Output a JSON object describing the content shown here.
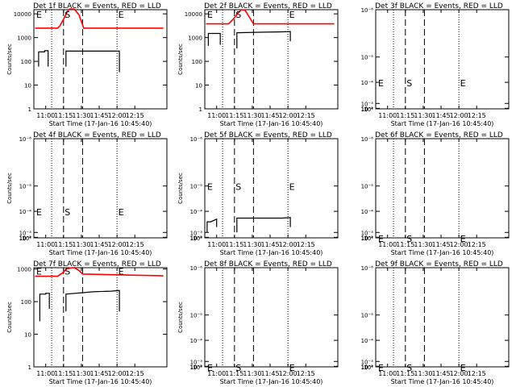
{
  "page": {
    "background": "#ffffff",
    "axis_color": "#000000",
    "events_color": "#000000",
    "lld_color": "#ff0000"
  },
  "chart_data": [
    {
      "type": "line",
      "panel": "det-1f",
      "title": "Det 1f BLACK = Events, RED = LLD",
      "xlabel": "Start Time (17-Jan-16 10:45:40)",
      "ylabel": "Counts/sec",
      "y_scale": "log",
      "ylim": [
        1,
        15000
      ],
      "xlim_minutes": [
        -10,
        102
      ],
      "x_tick_labels": [
        "11:00",
        "11:15",
        "11:30",
        "11:45",
        "12:00",
        "12:15"
      ],
      "x_tick_minutes": [
        0,
        15,
        30,
        45,
        60,
        75
      ],
      "y_tick_labels": [
        "1",
        "10",
        "100",
        "1000",
        "10000"
      ],
      "y_tick_values": [
        1,
        10,
        100,
        1000,
        10000
      ],
      "dotted_lines_minutes": [
        5,
        60
      ],
      "dashed_lines_minutes": [
        15,
        31
      ],
      "markers": [
        {
          "text": "E",
          "x": -8
        },
        {
          "text": "S",
          "x": 16
        },
        {
          "text": "E",
          "x": 61
        }
      ],
      "marker_y": 10000,
      "series": [
        {
          "name": "Events",
          "segments": [
            [
              [
                -6,
                60
              ],
              [
                -6,
                250
              ],
              [
                -1,
                250
              ],
              [
                -1,
                280
              ],
              [
                2,
                280
              ],
              [
                2,
                60
              ]
            ],
            [
              [
                17,
                60
              ],
              [
                17,
                270
              ],
              [
                40,
                270
              ],
              [
                55,
                270
              ],
              [
                62,
                270
              ],
              [
                62,
                35
              ]
            ]
          ]
        },
        {
          "name": "LLD",
          "segments": [
            [
              [
                -9,
                2500
              ],
              [
                10,
                2500
              ],
              [
                12,
                3200
              ],
              [
                15,
                6000
              ],
              [
                18,
                12000
              ],
              [
                20,
                16000
              ],
              [
                24,
                16000
              ],
              [
                28,
                9000
              ],
              [
                32,
                2500
              ],
              [
                99,
                2500
              ]
            ]
          ]
        }
      ]
    },
    {
      "type": "line",
      "panel": "det-2f",
      "title": "Det 2f BLACK = Events, RED = LLD",
      "xlabel": "Start Time (17-Jan-16 10:45:40)",
      "ylabel": "Counts/sec",
      "y_scale": "log",
      "ylim": [
        1,
        15000
      ],
      "xlim_minutes": [
        -10,
        102
      ],
      "x_tick_labels": [
        "11:00",
        "11:15",
        "11:30",
        "11:45",
        "12:00",
        "12:15"
      ],
      "x_tick_minutes": [
        0,
        15,
        30,
        45,
        60,
        75
      ],
      "y_tick_labels": [
        "1",
        "10",
        "100",
        "1000",
        "10000"
      ],
      "y_tick_values": [
        1,
        10,
        100,
        1000,
        10000
      ],
      "dotted_lines_minutes": [
        5,
        60
      ],
      "dashed_lines_minutes": [
        15,
        31
      ],
      "markers": [
        {
          "text": "E",
          "x": -8
        },
        {
          "text": "S",
          "x": 16
        },
        {
          "text": "E",
          "x": 61
        }
      ],
      "marker_y": 10000,
      "series": [
        {
          "name": "Events",
          "segments": [
            [
              [
                -7,
                450
              ],
              [
                -7,
                1500
              ],
              [
                3,
                1500
              ],
              [
                3,
                500
              ]
            ],
            [
              [
                17,
                350
              ],
              [
                17,
                1600
              ],
              [
                40,
                1700
              ],
              [
                55,
                1750
              ],
              [
                62,
                1800
              ],
              [
                62,
                700
              ]
            ]
          ]
        },
        {
          "name": "LLD",
          "segments": [
            [
              [
                -9,
                3800
              ],
              [
                10,
                3800
              ],
              [
                14,
                6000
              ],
              [
                18,
                11000
              ],
              [
                21,
                15000
              ],
              [
                24,
                14000
              ],
              [
                27,
                8000
              ],
              [
                31,
                3800
              ],
              [
                99,
                3800
              ]
            ]
          ]
        }
      ]
    },
    {
      "type": "line",
      "panel": "det-3f",
      "title": "Det 3f BLACK = Events, RED = LLD",
      "xlabel": "Start Time (17-Jan-16 10:45:40)",
      "ylabel": "",
      "y_scale": "log",
      "ylim": [
        1,
        1.2
      ],
      "xlim_minutes": [
        -10,
        102
      ],
      "x_tick_labels": [
        "11:00",
        "11:15",
        "11:30",
        "11:45",
        "12:00",
        "12:15"
      ],
      "x_tick_minutes": [
        0,
        15,
        30,
        45,
        60,
        75
      ],
      "y_tick_labels": [
        "10⁰",
        "10⁻¹",
        "10⁻²",
        "10⁻³",
        "10⁻⁴",
        "10⁻⁵",
        "10⁻⁶"
      ],
      "y_tick_values": [
        1,
        1.0001,
        1.001,
        1.01,
        1.05,
        1.1,
        1.2
      ],
      "dotted_lines_minutes": [
        5,
        60
      ],
      "dashed_lines_minutes": [
        15,
        31
      ],
      "markers": [
        {
          "text": "E",
          "x": -8
        },
        {
          "text": "S",
          "x": 16
        },
        {
          "text": "E",
          "x": 61
        }
      ],
      "marker_y": 1.05,
      "series": []
    },
    {
      "type": "line",
      "panel": "det-4f",
      "title": "Det 4f BLACK = Events, RED = LLD",
      "xlabel": "Start Time (17-Jan-16 10:45:40)",
      "ylabel": "Counts/sec",
      "y_scale": "log",
      "ylim": [
        1,
        1.2
      ],
      "xlim_minutes": [
        -10,
        102
      ],
      "x_tick_labels": [
        "11:00",
        "11:15",
        "11:30",
        "11:45",
        "12:00",
        "12:15"
      ],
      "x_tick_minutes": [
        0,
        15,
        30,
        45,
        60,
        75
      ],
      "y_tick_labels": [
        "10⁰",
        "10⁻¹",
        "10⁻²",
        "10⁻³",
        "10⁻⁴",
        "10⁻⁵",
        "10⁻⁶"
      ],
      "y_tick_values": [
        1,
        1.0001,
        1.001,
        1.01,
        1.05,
        1.1,
        1.2
      ],
      "dotted_lines_minutes": [
        5,
        60
      ],
      "dashed_lines_minutes": [
        15,
        31
      ],
      "markers": [
        {
          "text": "E",
          "x": -8
        },
        {
          "text": "S",
          "x": 16
        },
        {
          "text": "E",
          "x": 61
        }
      ],
      "marker_y": 1.05,
      "series": []
    },
    {
      "type": "line",
      "panel": "det-5f",
      "title": "Det 5f BLACK = Events, RED = LLD",
      "xlabel": "Start Time (17-Jan-16 10:45:40)",
      "ylabel": "Counts/sec",
      "y_scale": "log",
      "ylim": [
        1,
        1.2
      ],
      "xlim_minutes": [
        -10,
        102
      ],
      "x_tick_labels": [
        "11:00",
        "11:15",
        "11:30",
        "11:45",
        "12:00",
        "12:15"
      ],
      "x_tick_minutes": [
        0,
        15,
        30,
        45,
        60,
        75
      ],
      "y_tick_labels": [
        "10⁰",
        "10⁻¹",
        "10⁻²",
        "10⁻³",
        "10⁻⁴",
        "10⁻⁵",
        "10⁻⁶"
      ],
      "y_tick_values": [
        1,
        1.0001,
        1.001,
        1.01,
        1.05,
        1.1,
        1.2
      ],
      "dotted_lines_minutes": [
        5,
        60
      ],
      "dashed_lines_minutes": [
        15,
        31
      ],
      "markers": [
        {
          "text": "E",
          "x": -8
        },
        {
          "text": "S",
          "x": 16
        },
        {
          "text": "E",
          "x": 61
        }
      ],
      "marker_y": 1.1,
      "series": [
        {
          "name": "Events",
          "segments": [
            [
              [
                -8,
                1.01
              ],
              [
                -8,
                1.03
              ],
              [
                -5,
                1.03
              ],
              [
                0,
                1.035
              ],
              [
                0,
                1.02
              ]
            ],
            [
              [
                17,
                1.01
              ],
              [
                17,
                1.037
              ],
              [
                40,
                1.037
              ],
              [
                55,
                1.037
              ],
              [
                62,
                1.038
              ],
              [
                62,
                1.02
              ]
            ]
          ]
        }
      ]
    },
    {
      "type": "line",
      "panel": "det-6f",
      "title": "Det 6f BLACK = Events, RED = LLD",
      "xlabel": "Start Time (17-Jan-16 10:45:40)",
      "ylabel": "",
      "y_scale": "log",
      "ylim": [
        1,
        1.2
      ],
      "xlim_minutes": [
        -10,
        102
      ],
      "x_tick_labels": [
        "11:00",
        "11:15",
        "11:30",
        "11:45",
        "12:00",
        "12:15"
      ],
      "x_tick_minutes": [
        0,
        15,
        30,
        45,
        60,
        75
      ],
      "y_tick_labels": [
        "10⁰",
        "10⁻¹",
        "10⁻²",
        "10⁻³",
        "10⁻⁴",
        "10⁻⁵",
        "10⁻⁶"
      ],
      "y_tick_values": [
        1,
        1.0001,
        1.001,
        1.01,
        1.05,
        1.1,
        1.2
      ],
      "dotted_lines_minutes": [
        5,
        60
      ],
      "dashed_lines_minutes": [
        15,
        31
      ],
      "markers": [
        {
          "text": "E",
          "x": -8
        },
        {
          "text": "S",
          "x": 16
        },
        {
          "text": "E",
          "x": 61
        }
      ],
      "marker_y": 1.0001,
      "series": []
    },
    {
      "type": "line",
      "panel": "det-7f",
      "title": "Det 7f BLACK = Events, RED = LLD",
      "xlabel": "Start Time (17-Jan-16 10:45:40)",
      "ylabel": "Counts/sec",
      "y_scale": "log",
      "ylim": [
        1,
        1100
      ],
      "xlim_minutes": [
        -10,
        102
      ],
      "x_tick_labels": [
        "11:00",
        "11:15",
        "11:30",
        "11:45",
        "12:00",
        "12:15"
      ],
      "x_tick_minutes": [
        0,
        15,
        30,
        45,
        60,
        75
      ],
      "y_tick_labels": [
        "1",
        "10",
        "100",
        "1000"
      ],
      "y_tick_values": [
        1,
        10,
        100,
        1000
      ],
      "dotted_lines_minutes": [
        5,
        60
      ],
      "dashed_lines_minutes": [
        15,
        31
      ],
      "markers": [
        {
          "text": "E",
          "x": -8
        },
        {
          "text": "S",
          "x": 16
        },
        {
          "text": "E",
          "x": 61
        }
      ],
      "marker_y": 900,
      "series": [
        {
          "name": "Events",
          "segments": [
            [
              [
                -5,
                25
              ],
              [
                -5,
                170
              ],
              [
                0,
                170
              ],
              [
                0,
                180
              ],
              [
                3,
                180
              ],
              [
                3,
                60
              ]
            ],
            [
              [
                17,
                50
              ],
              [
                17,
                170
              ],
              [
                40,
                200
              ],
              [
                55,
                210
              ],
              [
                62,
                220
              ],
              [
                62,
                50
              ]
            ]
          ]
        },
        {
          "name": "LLD",
          "segments": [
            [
              [
                -9,
                600
              ],
              [
                10,
                600
              ],
              [
                14,
                750
              ],
              [
                18,
                1050
              ],
              [
                24,
                1100
              ],
              [
                28,
                900
              ],
              [
                31,
                700
              ],
              [
                99,
                620
              ]
            ]
          ]
        }
      ]
    },
    {
      "type": "line",
      "panel": "det-8f",
      "title": "Det 8f BLACK = Events, RED = LLD",
      "xlabel": "Start Time (17-Jan-16 10:45:40)",
      "ylabel": "Counts/sec",
      "y_scale": "log",
      "ylim": [
        1,
        1.2
      ],
      "xlim_minutes": [
        -10,
        102
      ],
      "x_tick_labels": [
        "11:00",
        "11:15",
        "11:30",
        "11:45",
        "12:00",
        "12:15"
      ],
      "x_tick_minutes": [
        0,
        15,
        30,
        45,
        60,
        75
      ],
      "y_tick_labels": [
        "10⁰",
        "10⁻¹",
        "10⁻²",
        "10⁻³",
        "10⁻⁴",
        "10⁻⁵",
        "10⁻⁶"
      ],
      "y_tick_values": [
        1,
        1.0001,
        1.001,
        1.01,
        1.05,
        1.1,
        1.2
      ],
      "dotted_lines_minutes": [
        5,
        60
      ],
      "dashed_lines_minutes": [
        15,
        31
      ],
      "markers": [
        {
          "text": "E",
          "x": -8
        },
        {
          "text": "S",
          "x": 16
        },
        {
          "text": "E",
          "x": 61
        }
      ],
      "marker_y": 1.0001,
      "series": []
    },
    {
      "type": "line",
      "panel": "det-9f",
      "title": "Det 9f BLACK = Events, RED = LLD",
      "xlabel": "Start Time (17-Jan-16 10:45:40)",
      "ylabel": "",
      "y_scale": "log",
      "ylim": [
        1,
        1.2
      ],
      "xlim_minutes": [
        -10,
        102
      ],
      "x_tick_labels": [
        "11:00",
        "11:15",
        "11:30",
        "11:45",
        "12:00",
        "12:15"
      ],
      "x_tick_minutes": [
        0,
        15,
        30,
        45,
        60,
        75
      ],
      "y_tick_labels": [
        "10⁰",
        "10⁻¹",
        "10⁻²",
        "10⁻³",
        "10⁻⁴",
        "10⁻⁵",
        "10⁻⁶"
      ],
      "y_tick_values": [
        1,
        1.0001,
        1.001,
        1.01,
        1.05,
        1.1,
        1.2
      ],
      "dotted_lines_minutes": [
        5,
        60
      ],
      "dashed_lines_minutes": [
        15,
        31
      ],
      "markers": [
        {
          "text": "E",
          "x": -8
        },
        {
          "text": "S",
          "x": 16
        },
        {
          "text": "E",
          "x": 61
        }
      ],
      "marker_y": 1.0001,
      "series": []
    }
  ]
}
